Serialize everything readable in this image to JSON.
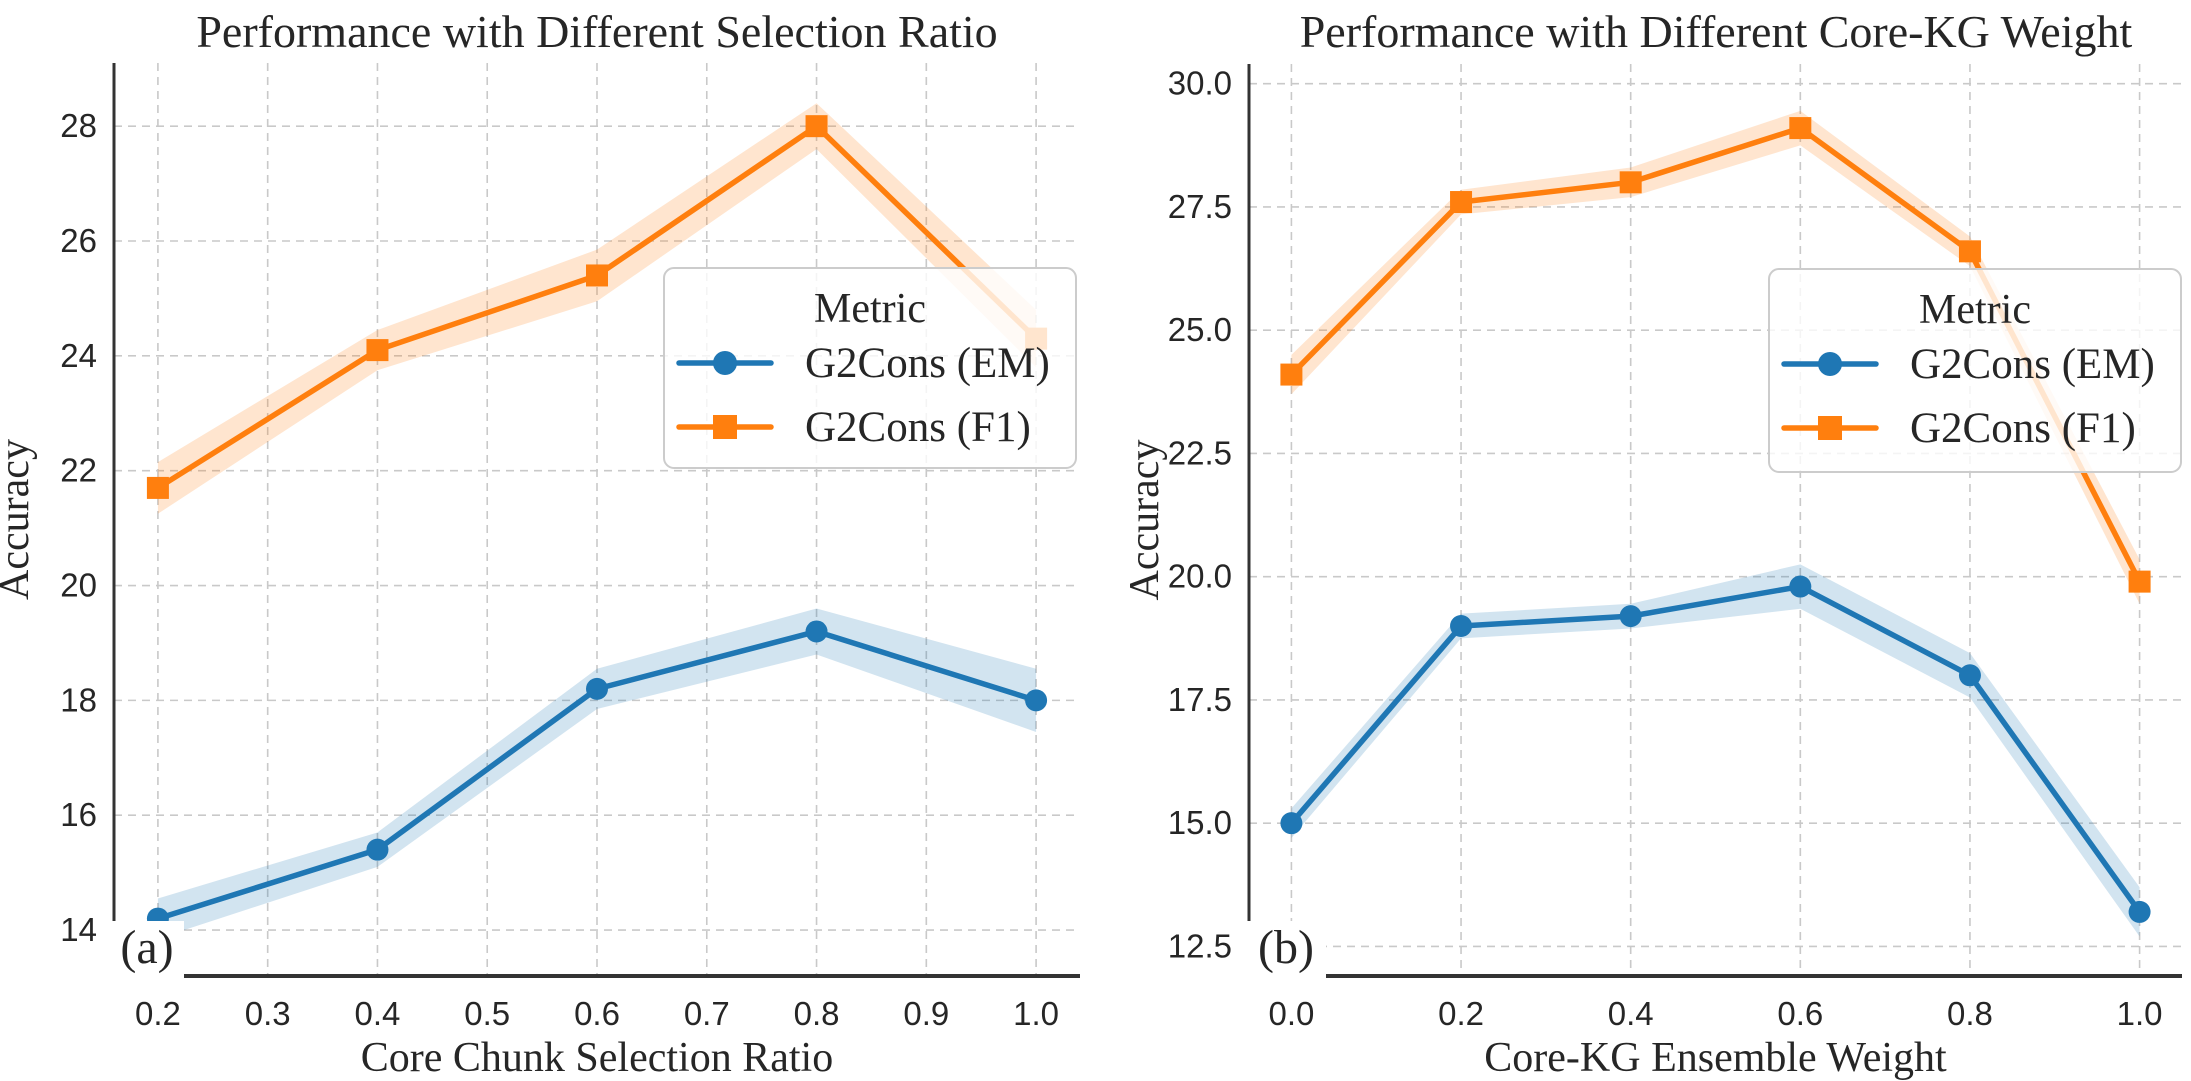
{
  "figure": {
    "background_color": "#ffffff",
    "text_color": "#262626",
    "grid_color": "#c9c9c9",
    "spine_color": "#333333",
    "legend_background": "#ffffff",
    "legend_border_color": "#cccccc",
    "tag_background": "#ffffff"
  },
  "chart_data": [
    {
      "type": "line",
      "panel_label": "(a)",
      "title": "Performance with Different Selection Ratio",
      "xlabel": "Core Chunk Selection Ratio",
      "ylabel": "Accuracy",
      "grid": true,
      "legend": {
        "title": "Metric",
        "position": "center right inset"
      },
      "x": [
        0.2,
        0.4,
        0.6,
        0.8,
        1.0
      ],
      "xlim": [
        0.16,
        1.04
      ],
      "ylim": [
        13.2,
        29.1
      ],
      "xticks": [
        0.2,
        0.3,
        0.4,
        0.5,
        0.6,
        0.7,
        0.8,
        0.9,
        1.0
      ],
      "xtick_labels": [
        "0.2",
        "0.3",
        "0.4",
        "0.5",
        "0.6",
        "0.7",
        "0.8",
        "0.9",
        "1.0"
      ],
      "yticks": [
        14,
        16,
        18,
        20,
        22,
        24,
        26,
        28
      ],
      "ytick_labels": [
        "14",
        "16",
        "18",
        "20",
        "22",
        "24",
        "26",
        "28"
      ],
      "series": [
        {
          "name": "G2Cons (EM)",
          "marker": "circle",
          "color": "#1f77b4",
          "values": [
            14.2,
            15.4,
            18.2,
            19.2,
            18.0
          ],
          "band_halfwidth": [
            0.35,
            0.3,
            0.35,
            0.4,
            0.55
          ]
        },
        {
          "name": "G2Cons (F1)",
          "marker": "square",
          "color": "#ff7f0e",
          "values": [
            21.7,
            24.1,
            25.4,
            28.0,
            24.3
          ],
          "band_halfwidth": [
            0.45,
            0.35,
            0.45,
            0.4,
            0.5
          ]
        }
      ]
    },
    {
      "type": "line",
      "panel_label": "(b)",
      "title": "Performance with Different Core-KG Weight",
      "xlabel": "Core-KG Ensemble Weight",
      "ylabel": "Accuracy",
      "grid": true,
      "legend": {
        "title": "Metric",
        "position": "center right inset"
      },
      "x": [
        0.0,
        0.2,
        0.4,
        0.6,
        0.8,
        1.0
      ],
      "xlim": [
        -0.05,
        1.05
      ],
      "ylim": [
        11.9,
        30.4
      ],
      "xticks": [
        0.0,
        0.2,
        0.4,
        0.6,
        0.8,
        1.0
      ],
      "xtick_labels": [
        "0.0",
        "0.2",
        "0.4",
        "0.6",
        "0.8",
        "1.0"
      ],
      "yticks": [
        12.5,
        15.0,
        17.5,
        20.0,
        22.5,
        25.0,
        27.5,
        30.0
      ],
      "ytick_labels": [
        "12.5",
        "15.0",
        "17.5",
        "20.0",
        "22.5",
        "25.0",
        "27.5",
        "30.0"
      ],
      "series": [
        {
          "name": "G2Cons (EM)",
          "marker": "circle",
          "color": "#1f77b4",
          "values": [
            15.0,
            19.0,
            19.2,
            19.8,
            18.0,
            13.2
          ],
          "band_halfwidth": [
            0.3,
            0.25,
            0.25,
            0.45,
            0.45,
            0.5
          ]
        },
        {
          "name": "G2Cons (F1)",
          "marker": "square",
          "color": "#ff7f0e",
          "values": [
            24.1,
            27.6,
            28.0,
            29.1,
            26.6,
            19.9
          ],
          "band_halfwidth": [
            0.4,
            0.25,
            0.3,
            0.35,
            0.3,
            0.45
          ]
        }
      ]
    }
  ]
}
